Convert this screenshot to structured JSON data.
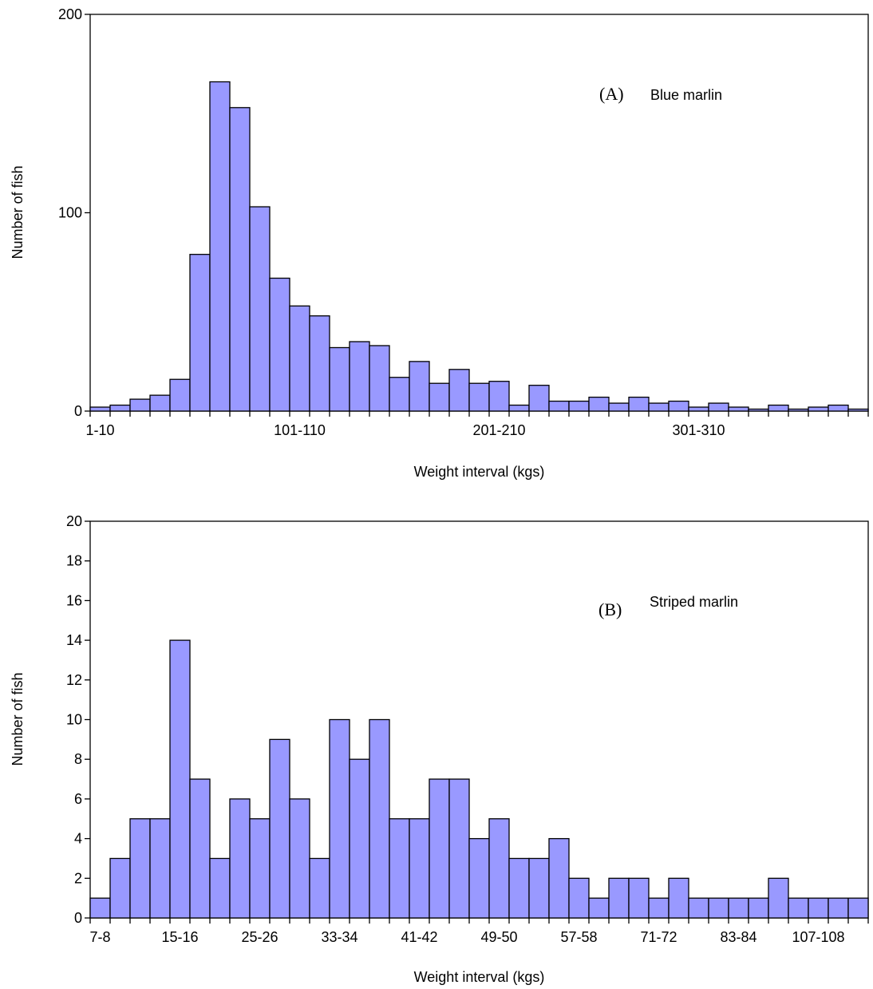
{
  "chart_data": [
    {
      "type": "bar",
      "panel_label": "(A)",
      "title": "Blue marlin",
      "xlabel": "Weight interval (kgs)",
      "ylabel": "Number of fish",
      "ylim": [
        0,
        200
      ],
      "yticks": [
        0,
        100,
        200
      ],
      "xtick_labels": [
        {
          "index": 0,
          "label": "1-10"
        },
        {
          "index": 10,
          "label": "101-110"
        },
        {
          "index": 20,
          "label": "201-210"
        },
        {
          "index": 30,
          "label": "301-310"
        }
      ],
      "values": [
        2,
        3,
        6,
        8,
        16,
        79,
        166,
        153,
        103,
        67,
        53,
        48,
        32,
        35,
        33,
        17,
        25,
        14,
        21,
        14,
        15,
        3,
        13,
        5,
        5,
        7,
        4,
        7,
        4,
        5,
        2,
        4,
        2,
        1,
        3,
        1,
        2,
        3,
        1
      ]
    },
    {
      "type": "bar",
      "panel_label": "(B)",
      "title": "Striped marlin",
      "xlabel": "Weight interval (kgs)",
      "ylabel": "Number of fish",
      "ylim": [
        0,
        20
      ],
      "yticks": [
        0,
        2,
        4,
        6,
        8,
        10,
        12,
        14,
        16,
        18,
        20
      ],
      "xtick_labels": [
        {
          "index": 0,
          "label": "7-8"
        },
        {
          "index": 4,
          "label": "15-16"
        },
        {
          "index": 8,
          "label": "25-26"
        },
        {
          "index": 12,
          "label": "33-34"
        },
        {
          "index": 16,
          "label": "41-42"
        },
        {
          "index": 20,
          "label": "49-50"
        },
        {
          "index": 24,
          "label": "57-58"
        },
        {
          "index": 28,
          "label": "71-72"
        },
        {
          "index": 32,
          "label": "83-84"
        },
        {
          "index": 36,
          "label": "107-108"
        }
      ],
      "values": [
        1,
        3,
        5,
        5,
        14,
        7,
        3,
        6,
        5,
        9,
        6,
        3,
        10,
        8,
        10,
        5,
        5,
        7,
        7,
        4,
        5,
        3,
        3,
        4,
        2,
        1,
        2,
        2,
        1,
        2,
        1,
        1,
        1,
        1,
        2,
        1,
        1,
        1,
        1
      ]
    }
  ]
}
